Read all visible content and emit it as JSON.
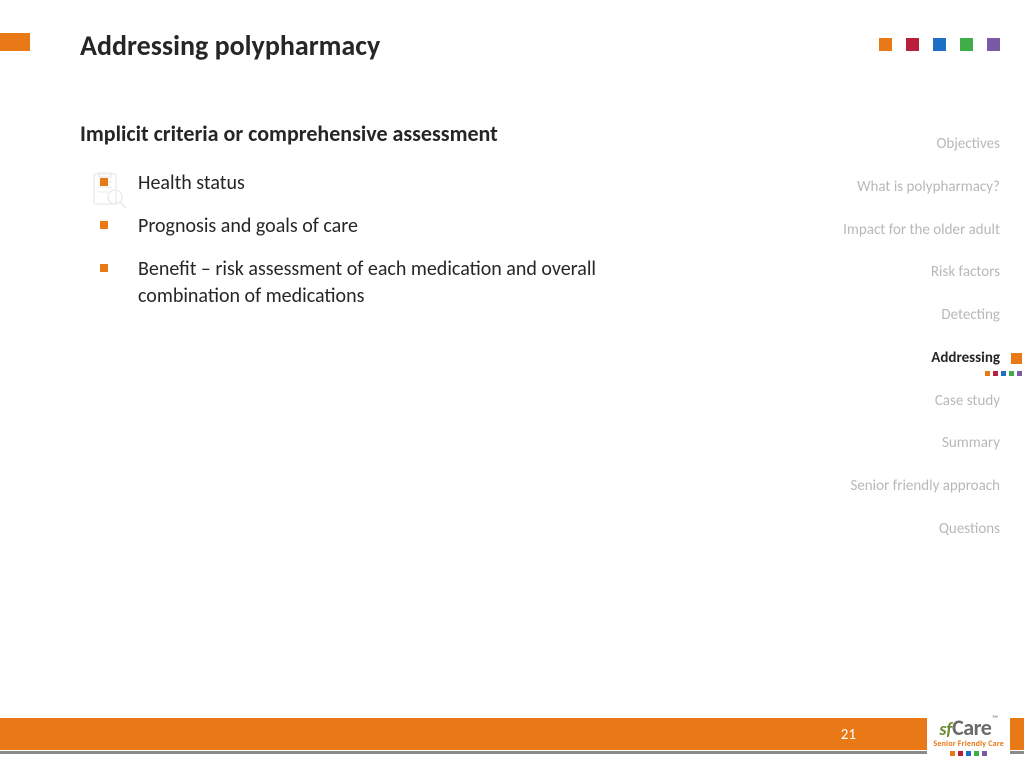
{
  "colors": {
    "orange": "#e97817",
    "crimson": "#b91f3b",
    "blue": "#1f6fc4",
    "green": "#3fae49",
    "purple": "#7a5aa6",
    "footer": "#e97817",
    "textMuted": "#b8b8b8",
    "textDark": "#262626"
  },
  "title": "Addressing polypharmacy",
  "subtitle": "Implicit criteria or comprehensive assessment",
  "bullets": [
    "Health status",
    "Prognosis and goals of care",
    "Benefit – risk assessment of each medication and overall combination of medications"
  ],
  "topSquares": [
    "#e97817",
    "#b91f3b",
    "#1f6fc4",
    "#3fae49",
    "#7a5aa6"
  ],
  "nav": [
    {
      "label": "Objectives",
      "active": false
    },
    {
      "label": "What is polypharmacy?",
      "active": false
    },
    {
      "label": "Impact for the older adult",
      "active": false
    },
    {
      "label": "Risk factors",
      "active": false
    },
    {
      "label": "Detecting",
      "active": false
    },
    {
      "label": "Addressing",
      "active": true
    },
    {
      "label": "Case study",
      "active": false
    },
    {
      "label": "Summary",
      "active": false
    },
    {
      "label": "Senior friendly approach",
      "active": false
    },
    {
      "label": "Questions",
      "active": false
    }
  ],
  "navDots": [
    "#e97817",
    "#b91f3b",
    "#1f6fc4",
    "#3fae49",
    "#7a5aa6"
  ],
  "pageNumber": "21",
  "logo": {
    "sf": "sf",
    "care": "Care",
    "tm": "™",
    "sub": "Senior Friendly Care",
    "dots": [
      "#e97817",
      "#b91f3b",
      "#1f6fc4",
      "#3fae49",
      "#7a5aa6"
    ]
  }
}
